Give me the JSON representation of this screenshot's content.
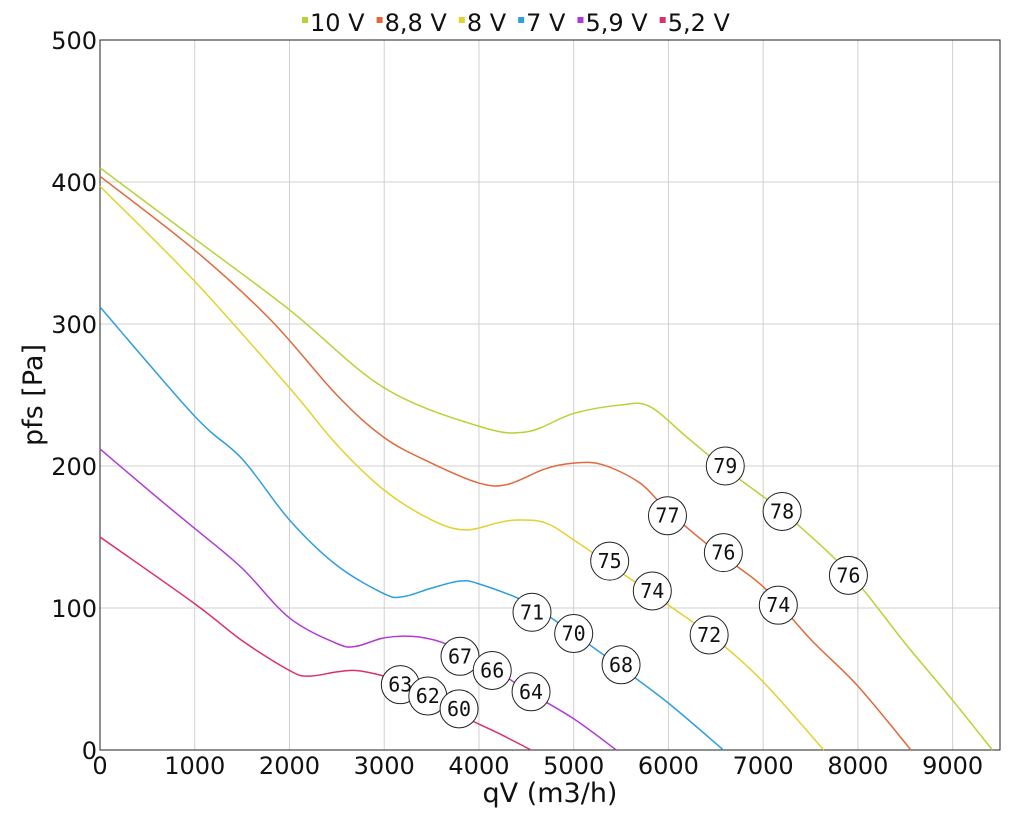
{
  "chart_data": {
    "type": "line",
    "xlabel": "qV (m3/h)",
    "ylabel": "pfs [Pa]",
    "xlim": [
      0,
      9500
    ],
    "ylim": [
      0,
      500
    ],
    "x_ticks": [
      0,
      1000,
      2000,
      3000,
      4000,
      5000,
      6000,
      7000,
      8000,
      9000
    ],
    "y_ticks": [
      0,
      100,
      200,
      300,
      400,
      500
    ],
    "grid": true,
    "legend_position": "top",
    "series": [
      {
        "name": "10 V",
        "color": "#b5d334",
        "points": [
          [
            0,
            410
          ],
          [
            1000,
            360
          ],
          [
            2000,
            310
          ],
          [
            3000,
            255
          ],
          [
            4000,
            228
          ],
          [
            4500,
            224
          ],
          [
            5000,
            237
          ],
          [
            5500,
            243
          ],
          [
            5800,
            242
          ],
          [
            6200,
            220
          ],
          [
            6600,
            198
          ],
          [
            7200,
            168
          ],
          [
            7900,
            125
          ],
          [
            8500,
            75
          ],
          [
            9000,
            35
          ],
          [
            9420,
            0
          ]
        ]
      },
      {
        "name": "8,8 V",
        "color": "#e2683c",
        "points": [
          [
            0,
            404
          ],
          [
            1000,
            352
          ],
          [
            1800,
            303
          ],
          [
            2500,
            250
          ],
          [
            3000,
            220
          ],
          [
            3500,
            202
          ],
          [
            4000,
            188
          ],
          [
            4300,
            187
          ],
          [
            4700,
            198
          ],
          [
            5000,
            202
          ],
          [
            5300,
            201
          ],
          [
            5700,
            188
          ],
          [
            6000,
            168
          ],
          [
            6500,
            140
          ],
          [
            7000,
            115
          ],
          [
            7500,
            78
          ],
          [
            8000,
            45
          ],
          [
            8560,
            0
          ]
        ]
      },
      {
        "name": "8 V",
        "color": "#e3d12e",
        "points": [
          [
            0,
            397
          ],
          [
            1000,
            330
          ],
          [
            2000,
            255
          ],
          [
            2500,
            215
          ],
          [
            3000,
            183
          ],
          [
            3500,
            162
          ],
          [
            3850,
            155
          ],
          [
            4200,
            160
          ],
          [
            4400,
            162
          ],
          [
            4700,
            160
          ],
          [
            5000,
            148
          ],
          [
            5500,
            125
          ],
          [
            6000,
            102
          ],
          [
            6500,
            78
          ],
          [
            7000,
            48
          ],
          [
            7640,
            0
          ]
        ]
      },
      {
        "name": "7 V",
        "color": "#2e9ee0",
        "points": [
          [
            0,
            312
          ],
          [
            1000,
            235
          ],
          [
            1500,
            205
          ],
          [
            2000,
            162
          ],
          [
            2500,
            130
          ],
          [
            3000,
            110
          ],
          [
            3200,
            108
          ],
          [
            3500,
            114
          ],
          [
            3800,
            119
          ],
          [
            4000,
            117
          ],
          [
            4500,
            104
          ],
          [
            5000,
            82
          ],
          [
            5500,
            58
          ],
          [
            6000,
            33
          ],
          [
            6580,
            0
          ]
        ]
      },
      {
        "name": "5,9 V",
        "color": "#b03ad8",
        "points": [
          [
            0,
            212
          ],
          [
            600,
            178
          ],
          [
            1000,
            156
          ],
          [
            1500,
            128
          ],
          [
            2000,
            93
          ],
          [
            2500,
            75
          ],
          [
            2700,
            73
          ],
          [
            3000,
            79
          ],
          [
            3300,
            80
          ],
          [
            3600,
            76
          ],
          [
            4000,
            64
          ],
          [
            4500,
            42
          ],
          [
            5000,
            22
          ],
          [
            5450,
            0
          ]
        ]
      },
      {
        "name": "5,2 V",
        "color": "#dc2f6a",
        "points": [
          [
            0,
            150
          ],
          [
            1000,
            103
          ],
          [
            1500,
            77
          ],
          [
            2000,
            56
          ],
          [
            2200,
            52
          ],
          [
            2500,
            55
          ],
          [
            2700,
            56
          ],
          [
            3000,
            52
          ],
          [
            3300,
            45
          ],
          [
            3700,
            28
          ],
          [
            4200,
            12
          ],
          [
            4550,
            0
          ]
        ]
      }
    ],
    "annotations": [
      {
        "text": "79",
        "x": 6600,
        "y": 200
      },
      {
        "text": "78",
        "x": 7200,
        "y": 168
      },
      {
        "text": "76",
        "x": 7900,
        "y": 123
      },
      {
        "text": "77",
        "x": 5990,
        "y": 165
      },
      {
        "text": "76",
        "x": 6580,
        "y": 139
      },
      {
        "text": "74",
        "x": 7160,
        "y": 102
      },
      {
        "text": "75",
        "x": 5380,
        "y": 133
      },
      {
        "text": "74",
        "x": 5830,
        "y": 112
      },
      {
        "text": "72",
        "x": 6430,
        "y": 81
      },
      {
        "text": "71",
        "x": 4560,
        "y": 97
      },
      {
        "text": "70",
        "x": 5000,
        "y": 82
      },
      {
        "text": "68",
        "x": 5500,
        "y": 60
      },
      {
        "text": "67",
        "x": 3800,
        "y": 66
      },
      {
        "text": "66",
        "x": 4140,
        "y": 56
      },
      {
        "text": "64",
        "x": 4550,
        "y": 41
      },
      {
        "text": "63",
        "x": 3170,
        "y": 46
      },
      {
        "text": "62",
        "x": 3460,
        "y": 38
      },
      {
        "text": "60",
        "x": 3790,
        "y": 29
      }
    ]
  }
}
